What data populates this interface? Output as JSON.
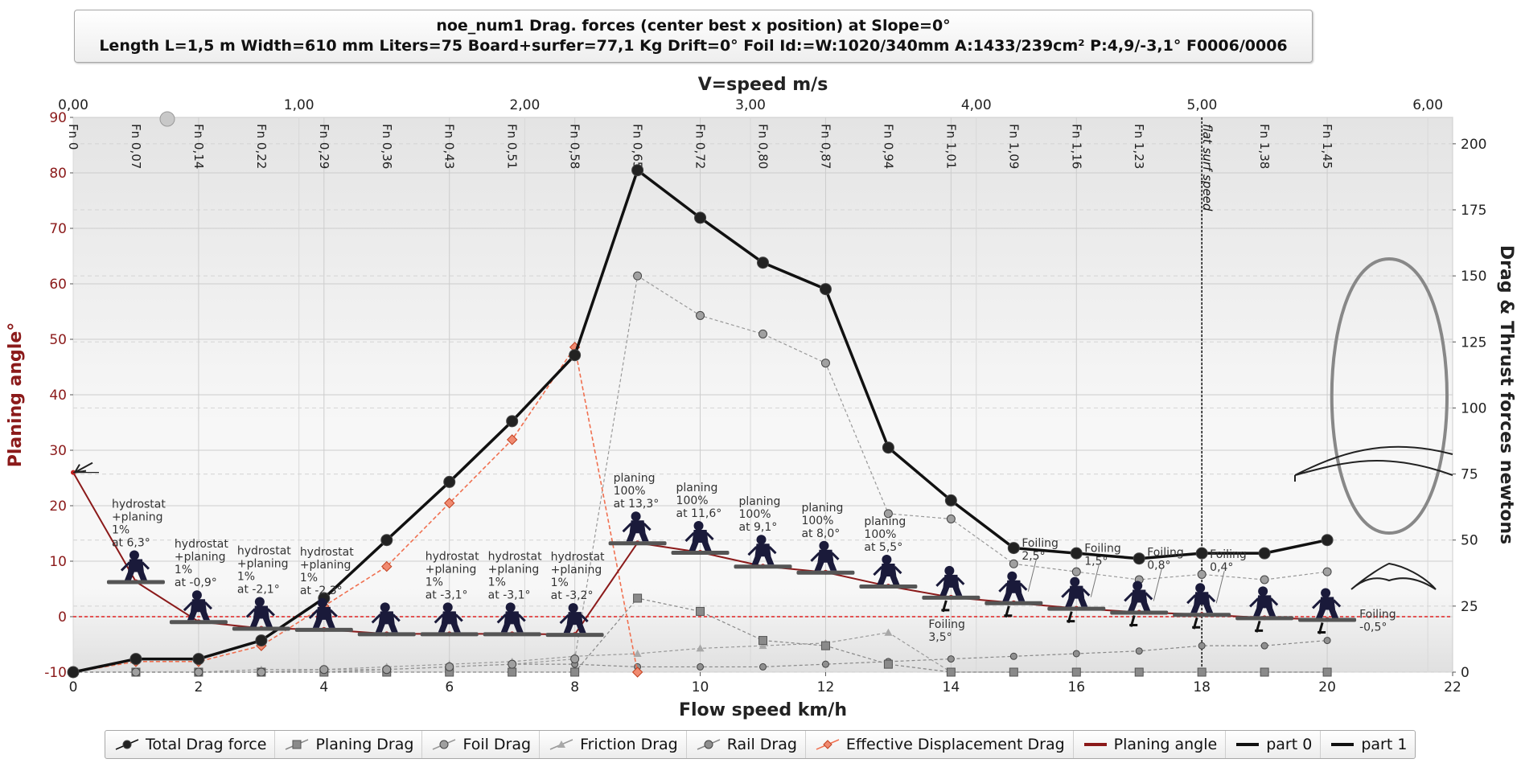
{
  "title": {
    "line1": "noe_num1 Drag. forces (center best x position) at  Slope=0°",
    "line2": "Length L=1,5 m Width=610 mm Liters=75 Board+surfer=77,1 Kg Drift=0° Foil Id:=W:1020/340mm A:1433/239cm² P:4,9/-3,1° F0006/0006"
  },
  "colors": {
    "total": "#111111",
    "planing_drag": "#888888",
    "foil_drag": "#999999",
    "friction": "#999999",
    "rail": "#888888",
    "displacement": "#f07050",
    "planing_angle": "#8b1a1a",
    "zero_line": "#e02020"
  },
  "chart_data": {
    "type": "line",
    "xlabel": "Flow speed km/h",
    "x2label": "V=speed m/s",
    "ylabel": "Planing angle°",
    "y2label": "Drag & Thrust forces newtons",
    "xlim": [
      0,
      22
    ],
    "x_ticks": [
      "0",
      "2",
      "4",
      "6",
      "8",
      "10",
      "12",
      "14",
      "16",
      "18",
      "20",
      "22"
    ],
    "x2lim": [
      0,
      6.11
    ],
    "x2_ticks": [
      "0,00",
      "1,00",
      "2,00",
      "3,00",
      "4,00",
      "5,00",
      "6,00"
    ],
    "ylim": [
      -10,
      90
    ],
    "y_ticks": [
      "-10",
      "0",
      "10",
      "20",
      "30",
      "40",
      "50",
      "60",
      "70",
      "80",
      "90"
    ],
    "y2lim": [
      0,
      210
    ],
    "y2_ticks": [
      "0",
      "25",
      "50",
      "75",
      "100",
      "125",
      "150",
      "175",
      "200"
    ],
    "fn_labels": [
      {
        "x": 0,
        "label": "Fn 0"
      },
      {
        "x": 1,
        "label": "Fn 0,07"
      },
      {
        "x": 2,
        "label": "Fn 0,14"
      },
      {
        "x": 3,
        "label": "Fn 0,22"
      },
      {
        "x": 4,
        "label": "Fn 0,29"
      },
      {
        "x": 5,
        "label": "Fn 0,36"
      },
      {
        "x": 6,
        "label": "Fn 0,43"
      },
      {
        "x": 7,
        "label": "Fn 0,51"
      },
      {
        "x": 8,
        "label": "Fn 0,58"
      },
      {
        "x": 9,
        "label": "Fn 0,65"
      },
      {
        "x": 10,
        "label": "Fn 0,72"
      },
      {
        "x": 11,
        "label": "Fn 0,80"
      },
      {
        "x": 12,
        "label": "Fn 0,87"
      },
      {
        "x": 13,
        "label": "Fn 0,94"
      },
      {
        "x": 14,
        "label": "Fn 1,01"
      },
      {
        "x": 15,
        "label": "Fn 1,09"
      },
      {
        "x": 16,
        "label": "Fn 1,16"
      },
      {
        "x": 17,
        "label": "Fn 1,23"
      },
      {
        "x": 19,
        "label": "Fn 1,38"
      },
      {
        "x": 20,
        "label": "Fn 1,45"
      }
    ],
    "reference_line": {
      "x": 18,
      "label": "flat surf speed"
    },
    "series": [
      {
        "name": "Total Drag force",
        "axis": "right",
        "key": "total",
        "x": [
          0,
          1,
          2,
          3,
          4,
          5,
          6,
          7,
          8,
          9,
          10,
          11,
          12,
          13,
          14,
          15,
          16,
          17,
          18,
          19,
          20
        ],
        "values": [
          0,
          5,
          5,
          12,
          28,
          50,
          72,
          95,
          120,
          190,
          172,
          155,
          145,
          85,
          65,
          47,
          45,
          43,
          45,
          45,
          50
        ]
      },
      {
        "name": "Planing Drag",
        "axis": "right",
        "key": "planing_drag",
        "x": [
          0,
          1,
          2,
          3,
          4,
          5,
          6,
          7,
          8,
          9,
          10,
          11,
          12,
          13,
          14,
          15,
          16,
          17,
          18,
          19,
          20
        ],
        "values": [
          0,
          0,
          0,
          0,
          0,
          0,
          0,
          0,
          0,
          28,
          23,
          12,
          10,
          3,
          0,
          0,
          0,
          0,
          0,
          0,
          0
        ]
      },
      {
        "name": "Foil Drag",
        "axis": "right",
        "key": "foil_drag",
        "x": [
          0,
          1,
          2,
          3,
          4,
          5,
          6,
          7,
          8,
          9,
          10,
          11,
          12,
          13,
          14,
          15,
          16,
          17,
          18,
          19,
          20
        ],
        "values": [
          0,
          0,
          0,
          0,
          1,
          1,
          2,
          3,
          5,
          150,
          135,
          128,
          117,
          60,
          58,
          41,
          38,
          35,
          37,
          35,
          38
        ]
      },
      {
        "name": "Friction Drag",
        "axis": "right",
        "key": "friction",
        "x": [
          0,
          1,
          2,
          3,
          4,
          5,
          6,
          7,
          8,
          9,
          10,
          11,
          12,
          13,
          14,
          15,
          16,
          17,
          18,
          19,
          20
        ],
        "values": [
          0,
          0,
          0,
          1,
          1,
          2,
          3,
          4,
          6,
          7,
          9,
          10,
          11,
          15,
          0,
          0,
          0,
          0,
          0,
          0,
          0
        ]
      },
      {
        "name": "Rail Drag",
        "axis": "right",
        "key": "rail",
        "x": [
          0,
          1,
          2,
          3,
          4,
          5,
          6,
          7,
          8,
          9,
          10,
          11,
          12,
          13,
          14,
          15,
          16,
          17,
          18,
          19,
          20
        ],
        "values": [
          0,
          0,
          0,
          0,
          0,
          1,
          2,
          3,
          3,
          2,
          2,
          2,
          3,
          4,
          5,
          6,
          7,
          8,
          10,
          10,
          12
        ]
      },
      {
        "name": "Effective Displacement Drag",
        "axis": "right",
        "key": "displacement",
        "x": [
          0,
          1,
          2,
          3,
          4,
          5,
          6,
          7,
          8,
          9
        ],
        "values": [
          0,
          4,
          4,
          10,
          25,
          40,
          64,
          88,
          123,
          0
        ]
      },
      {
        "name": "Planing angle",
        "axis": "left",
        "key": "planing_angle",
        "x": [
          0,
          1,
          2,
          3,
          4,
          5,
          6,
          7,
          8,
          9,
          10,
          11,
          12,
          13,
          14,
          15,
          16,
          17,
          18,
          19,
          20
        ],
        "values": [
          26,
          6.3,
          -0.9,
          -2.1,
          -2.3,
          -3.1,
          -3.1,
          -3.1,
          -3.2,
          13.3,
          11.6,
          9.1,
          8.0,
          5.5,
          3.5,
          2.5,
          1.5,
          0.8,
          0.4,
          -0.2,
          -0.5
        ]
      }
    ],
    "legend": {
      "placement": "bottom",
      "items": [
        {
          "label": "Total Drag force",
          "key": "total",
          "marker": "circle"
        },
        {
          "label": "Planing Drag",
          "key": "planing_drag",
          "marker": "square"
        },
        {
          "label": "Foil Drag",
          "key": "foil_drag",
          "marker": "circle"
        },
        {
          "label": "Friction Drag",
          "key": "friction",
          "marker": "triangle"
        },
        {
          "label": "Rail Drag",
          "key": "rail",
          "marker": "circle"
        },
        {
          "label": "Effective Displacement Drag",
          "key": "displacement",
          "marker": "diamond"
        },
        {
          "label": "Planing angle",
          "key": "planing_angle",
          "marker": "line"
        },
        {
          "label": "part 0",
          "key": "total",
          "marker": "line"
        },
        {
          "label": "part 1",
          "key": "total",
          "marker": "line"
        }
      ]
    },
    "annotations": [
      {
        "x": 1,
        "y": 6.3,
        "lines": [
          "hydrostat",
          "+planing",
          "1%",
          "at 6,3°"
        ]
      },
      {
        "x": 2,
        "y": -0.9,
        "lines": [
          "hydrostat",
          "+planing",
          "1%",
          "at -0,9°"
        ]
      },
      {
        "x": 3,
        "y": -2.1,
        "lines": [
          "hydrostat",
          "+planing",
          "1%",
          "at -2,1°"
        ]
      },
      {
        "x": 4,
        "y": -2.3,
        "lines": [
          "hydrostat",
          "+planing",
          "1%",
          "at -2,3°"
        ]
      },
      {
        "x": 6,
        "y": -3.1,
        "lines": [
          "hydrostat",
          "+planing",
          "1%",
          "at -3,1°"
        ]
      },
      {
        "x": 7,
        "y": -3.1,
        "lines": [
          "hydrostat",
          "+planing",
          "1%",
          "at -3,1°"
        ]
      },
      {
        "x": 8,
        "y": -3.2,
        "lines": [
          "hydrostat",
          "+planing",
          "1%",
          "at -3,2°"
        ]
      },
      {
        "x": 9,
        "y": 13.3,
        "lines": [
          "planing",
          "100%",
          "at 13,3°"
        ]
      },
      {
        "x": 10,
        "y": 11.6,
        "lines": [
          "planing",
          "100%",
          "at 11,6°"
        ]
      },
      {
        "x": 11,
        "y": 9.1,
        "lines": [
          "planing",
          "100%",
          "at 9,1°"
        ]
      },
      {
        "x": 12,
        "y": 8.0,
        "lines": [
          "planing",
          "100%",
          "at 8,0°"
        ]
      },
      {
        "x": 13,
        "y": 5.5,
        "lines": [
          "planing",
          "100%",
          "at 5,5°"
        ]
      },
      {
        "x": 14,
        "y": 3.5,
        "lines": [
          "Foiling",
          "3,5°"
        ]
      },
      {
        "x": 15,
        "y": 2.5,
        "lines": [
          "Foiling",
          "2,5°"
        ]
      },
      {
        "x": 16,
        "y": 1.5,
        "lines": [
          "Foiling",
          "1,5°"
        ]
      },
      {
        "x": 17,
        "y": 0.8,
        "lines": [
          "Foiling",
          "0,8°"
        ]
      },
      {
        "x": 18,
        "y": 0.4,
        "lines": [
          "Foiling",
          "0,4°"
        ]
      },
      {
        "x": 20,
        "y": -0.5,
        "lines": [
          "Foiling",
          "-0,5°"
        ]
      }
    ]
  }
}
